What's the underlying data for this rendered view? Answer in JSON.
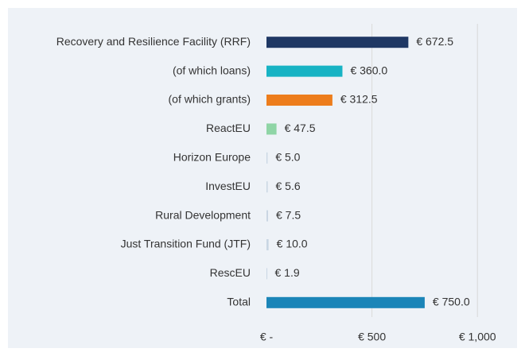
{
  "chart_data": {
    "type": "bar",
    "orientation": "horizontal",
    "categories": [
      "Recovery and Resilience Facility (RRF)",
      "(of which loans)",
      "(of which grants)",
      "ReactEU",
      "Horizon Europe",
      "InvestEU",
      "Rural Development",
      "Just Transition Fund (JTF)",
      "RescEU",
      "Total"
    ],
    "values": [
      672.5,
      360.0,
      312.5,
      47.5,
      5.0,
      5.6,
      7.5,
      10.0,
      1.9,
      750.0
    ],
    "value_labels": [
      "€ 672.5",
      "€ 360.0",
      "€ 312.5",
      "€ 47.5",
      "€ 5.0",
      "€ 5.6",
      "€ 7.5",
      "€ 10.0",
      "€ 1.9",
      "€ 750.0"
    ],
    "colors": [
      "#1f3864",
      "#17b3c4",
      "#ed7d1c",
      "#8fd5a6",
      "#c9d6e3",
      "#c9d6e3",
      "#c9d6e3",
      "#c9d6e3",
      "#c9d6e3",
      "#1b85b8"
    ],
    "xlim": [
      0,
      1150
    ],
    "xticks": [
      {
        "value": 0,
        "label": "€ -"
      },
      {
        "value": 500,
        "label": "€ 500"
      },
      {
        "value": 1000,
        "label": "€ 1,000"
      }
    ],
    "grid": true
  }
}
